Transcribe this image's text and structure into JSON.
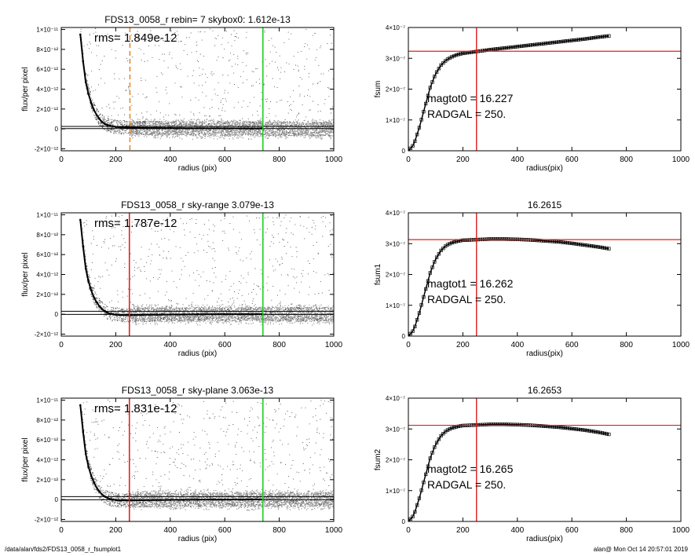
{
  "footer": {
    "path": "/data/alan/fds2/FDS13_0058_r_fsumplot1",
    "stamp": "alan@  Mon Oct 14 20:57:01 2019"
  },
  "chart_data": [
    {
      "type": "scatter",
      "panel": "flux-profile-1",
      "title": "FDS13_0058_r rebin= 7    skybox0:  1.612e-13",
      "annotation": "rms= 1.849e-12",
      "xlabel": "radius (pix)",
      "ylabel": "flux/per pixel",
      "xlim": [
        0,
        1000
      ],
      "ylim": [
        -2.2e-12,
        1.02e-11
      ],
      "xticks": [
        0,
        200,
        400,
        600,
        800,
        1000
      ],
      "xtick_labels": [
        "0",
        "200",
        "400",
        "600",
        "800",
        "1000"
      ],
      "yticks": [
        -2e-12,
        0,
        2e-12,
        4e-12,
        6e-12,
        8e-12,
        1e-11
      ],
      "ytick_labels": [
        "-2×10⁻¹²",
        "0",
        "2×10⁻¹²",
        "4×10⁻¹²",
        "6×10⁻¹²",
        "8×10⁻¹²",
        "1×10⁻¹¹"
      ],
      "profile": {
        "x": [
          70,
          80,
          90,
          100,
          110,
          120,
          130,
          140,
          150,
          160,
          170,
          180,
          190,
          200,
          220,
          250,
          300,
          350,
          400,
          450,
          500,
          600,
          700,
          740
        ],
        "y": [
          9.5e-12,
          6.8e-12,
          4.7e-12,
          3.5e-12,
          2.6e-12,
          1.9e-12,
          1.4e-12,
          1e-12,
          7e-13,
          5e-13,
          4e-13,
          3e-13,
          2.5e-13,
          2e-13,
          1.5e-13,
          1.2e-13,
          1e-13,
          9e-14,
          8e-14,
          7e-14,
          6e-14,
          5e-14,
          4e-14,
          4e-14
        ]
      },
      "hlines": [
        2.5e-13,
        3e-14
      ],
      "vlines": [
        {
          "x": 252,
          "color": "#e8892b",
          "style": "dashed"
        },
        {
          "x": 740,
          "color": "#1fcf1f",
          "style": "solid"
        }
      ],
      "grid": false
    },
    {
      "type": "line",
      "panel": "fsum-1",
      "title": "",
      "annotations": [
        "magtot0 =  16.227",
        "RADGAL =    250."
      ],
      "xlabel": "radius(pix)",
      "ylabel": "fsum",
      "xlim": [
        0,
        1000
      ],
      "ylim": [
        0,
        4e-07
      ],
      "xticks": [
        0,
        200,
        400,
        600,
        800,
        1000
      ],
      "xtick_labels": [
        "0",
        "200",
        "400",
        "600",
        "800",
        "1000"
      ],
      "yticks": [
        0,
        1e-07,
        2e-07,
        3e-07,
        4e-07
      ],
      "ytick_labels": [
        "0",
        "1×10⁻⁷",
        "2×10⁻⁷",
        "3×10⁻⁷",
        "4×10⁻⁷"
      ],
      "x": [
        0,
        20,
        40,
        60,
        80,
        100,
        120,
        140,
        160,
        180,
        200,
        250,
        300,
        350,
        400,
        450,
        500,
        550,
        600,
        650,
        700,
        740
      ],
      "y": [
        0,
        2e-08,
        7.5e-08,
        1.4e-07,
        2.05e-07,
        2.5e-07,
        2.78e-07,
        2.95e-07,
        3.05e-07,
        3.12e-07,
        3.16e-07,
        3.22e-07,
        3.28e-07,
        3.33e-07,
        3.38e-07,
        3.43e-07,
        3.48e-07,
        3.53e-07,
        3.58e-07,
        3.63e-07,
        3.69e-07,
        3.73e-07
      ],
      "hline": 3.23e-07,
      "vline": 250,
      "grid": false
    },
    {
      "type": "scatter",
      "panel": "flux-profile-2",
      "title": "FDS13_0058_r sky-range  3.079e-13",
      "annotation": "rms= 1.787e-12",
      "xlabel": "radius (pix)",
      "ylabel": "flux/per pixel",
      "xlim": [
        0,
        1000
      ],
      "ylim": [
        -2.2e-12,
        1.02e-11
      ],
      "xticks": [
        0,
        200,
        400,
        600,
        800,
        1000
      ],
      "xtick_labels": [
        "0",
        "200",
        "400",
        "600",
        "800",
        "1000"
      ],
      "yticks": [
        -2e-12,
        0,
        2e-12,
        4e-12,
        6e-12,
        8e-12,
        1e-11
      ],
      "ytick_labels": [
        "-2×10⁻¹²",
        "0",
        "2×10⁻¹²",
        "4×10⁻¹²",
        "6×10⁻¹²",
        "8×10⁻¹²",
        "1×10⁻¹¹"
      ],
      "profile": {
        "x": [
          70,
          80,
          90,
          100,
          110,
          120,
          130,
          140,
          150,
          160,
          170,
          180,
          190,
          200,
          220,
          250,
          300,
          350,
          400,
          450,
          500,
          600,
          700,
          740
        ],
        "y": [
          9.5e-12,
          6.8e-12,
          4.6e-12,
          3.3e-12,
          2.4e-12,
          1.7e-12,
          1.2e-12,
          8e-13,
          5e-13,
          3e-13,
          1.5e-13,
          5e-14,
          0,
          -5e-14,
          -8e-14,
          -9e-14,
          -6e-14,
          -4e-14,
          -3e-14,
          -2e-14,
          -1e-14,
          0,
          0,
          0
        ]
      },
      "hlines": [
        3e-13,
        -2e-14
      ],
      "vlines": [
        {
          "x": 250,
          "color": "#e02020",
          "style": "solid"
        },
        {
          "x": 740,
          "color": "#1fcf1f",
          "style": "solid"
        }
      ],
      "grid": false
    },
    {
      "type": "line",
      "panel": "fsum-2",
      "title": "16.2615",
      "annotations": [
        "magtot1 =  16.262",
        "RADGAL =    250."
      ],
      "xlabel": "radius(pix)",
      "ylabel": "fsum1",
      "xlim": [
        0,
        1000
      ],
      "ylim": [
        0,
        4e-07
      ],
      "xticks": [
        0,
        200,
        400,
        600,
        800,
        1000
      ],
      "xtick_labels": [
        "0",
        "200",
        "400",
        "600",
        "800",
        "1000"
      ],
      "yticks": [
        0,
        1e-07,
        2e-07,
        3e-07,
        4e-07
      ],
      "ytick_labels": [
        "0",
        "1×10⁻⁷",
        "2×10⁻⁷",
        "3×10⁻⁷",
        "4×10⁻⁷"
      ],
      "x": [
        0,
        20,
        40,
        60,
        80,
        100,
        120,
        140,
        160,
        180,
        200,
        250,
        300,
        350,
        400,
        450,
        500,
        550,
        600,
        650,
        700,
        740
      ],
      "y": [
        0,
        2e-08,
        7.5e-08,
        1.4e-07,
        2.05e-07,
        2.5e-07,
        2.78e-07,
        2.95e-07,
        3.03e-07,
        3.08e-07,
        3.11e-07,
        3.13e-07,
        3.15e-07,
        3.15e-07,
        3.14e-07,
        3.12e-07,
        3.09e-07,
        3.06e-07,
        3.01e-07,
        2.95e-07,
        2.89e-07,
        2.83e-07
      ],
      "hline": 3.13e-07,
      "vline": 250,
      "grid": false
    },
    {
      "type": "scatter",
      "panel": "flux-profile-3",
      "title": "FDS13_0058_r sky-plane  3.063e-13",
      "annotation": "rms= 1.831e-12",
      "xlabel": "radius (pix)",
      "ylabel": "flux/per pixel",
      "xlim": [
        0,
        1000
      ],
      "ylim": [
        -2.2e-12,
        1.02e-11
      ],
      "xticks": [
        0,
        200,
        400,
        600,
        800,
        1000
      ],
      "xtick_labels": [
        "0",
        "200",
        "400",
        "600",
        "800",
        "1000"
      ],
      "yticks": [
        -2e-12,
        0,
        2e-12,
        4e-12,
        6e-12,
        8e-12,
        1e-11
      ],
      "ytick_labels": [
        "-2×10⁻¹²",
        "0",
        "2×10⁻¹²",
        "4×10⁻¹²",
        "6×10⁻¹²",
        "8×10⁻¹²",
        "1×10⁻¹¹"
      ],
      "profile": {
        "x": [
          70,
          80,
          90,
          100,
          110,
          120,
          130,
          140,
          150,
          160,
          170,
          180,
          190,
          200,
          220,
          250,
          300,
          350,
          400,
          450,
          500,
          600,
          700,
          740
        ],
        "y": [
          9.5e-12,
          6.8e-12,
          4.6e-12,
          3.3e-12,
          2.4e-12,
          1.7e-12,
          1.2e-12,
          8e-13,
          5e-13,
          3e-13,
          1.5e-13,
          5e-14,
          0,
          -5e-14,
          -8e-14,
          -9e-14,
          -6e-14,
          -4e-14,
          -3e-14,
          -2e-14,
          -1e-14,
          0,
          0,
          0
        ]
      },
      "hlines": [
        3e-13,
        -2e-14
      ],
      "vlines": [
        {
          "x": 250,
          "color": "#e02020",
          "style": "solid"
        },
        {
          "x": 740,
          "color": "#1fcf1f",
          "style": "solid"
        }
      ],
      "grid": false
    },
    {
      "type": "line",
      "panel": "fsum-3",
      "title": "16.2653",
      "annotations": [
        "magtot2 =  16.265",
        "RADGAL =    250."
      ],
      "xlabel": "radius(pix)",
      "ylabel": "fsum2",
      "xlim": [
        0,
        1000
      ],
      "ylim": [
        0,
        4e-07
      ],
      "xticks": [
        0,
        200,
        400,
        600,
        800,
        1000
      ],
      "xtick_labels": [
        "0",
        "200",
        "400",
        "600",
        "800",
        "1000"
      ],
      "yticks": [
        0,
        1e-07,
        2e-07,
        3e-07,
        4e-07
      ],
      "ytick_labels": [
        "0",
        "1×10⁻⁷",
        "2×10⁻⁷",
        "3×10⁻⁷",
        "4×10⁻⁷"
      ],
      "x": [
        0,
        20,
        40,
        60,
        80,
        100,
        120,
        140,
        160,
        180,
        200,
        250,
        300,
        350,
        400,
        450,
        500,
        550,
        600,
        650,
        700,
        740
      ],
      "y": [
        0,
        2e-08,
        7.5e-08,
        1.4e-07,
        2.05e-07,
        2.5e-07,
        2.78e-07,
        2.95e-07,
        3.03e-07,
        3.08e-07,
        3.11e-07,
        3.13e-07,
        3.15e-07,
        3.15e-07,
        3.14e-07,
        3.12e-07,
        3.09e-07,
        3.06e-07,
        3.01e-07,
        2.96e-07,
        2.89e-07,
        2.82e-07
      ],
      "hline": 3.12e-07,
      "vline": 250,
      "grid": false
    }
  ]
}
